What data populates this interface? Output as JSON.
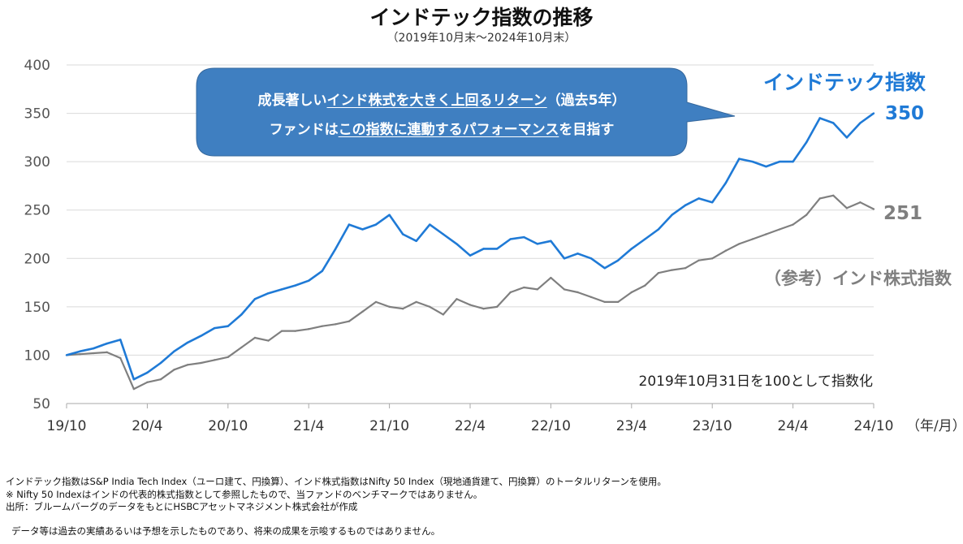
{
  "title": "インドテック指数の推移",
  "subtitle": "（2019年10月末～2024年10月末）",
  "callout": {
    "line1_a": "成長著しい",
    "line1_u": "インド株式を大きく上回るリターン",
    "line1_b": "（過去5年）",
    "line2_a": "ファンドは",
    "line2_u": "この指数に連動するパフォーマンス",
    "line2_b": "を目指す",
    "color": "#3f7fc1"
  },
  "index_note": "2019年10月31日を100として指数化",
  "x_unit_label": "（年/月）",
  "notes": [
    "インドテック指数はS&P India Tech Index（ユーロ建て、円換算）、インド株式指数はNifty 50 Index（現地通貨建て、円換算）のトータルリターンを使用。",
    "※ Nifty 50 Indexはインドの代表的株式指数として参照したもので、当ファンドのベンチマークではありません。",
    "出所：ブルームバーグのデータをもとにHSBCアセットマネジメント株式会社が作成"
  ],
  "disclaimer": "データ等は過去の実績あるいは予想を示したものであり、将来の成果を示唆するものではありません。",
  "chart_data": {
    "type": "line",
    "ylim": [
      50,
      400
    ],
    "yticks": [
      50,
      100,
      150,
      200,
      250,
      300,
      350,
      400
    ],
    "xlim": [
      "2019-10",
      "2024-10"
    ],
    "xtick_labels": [
      "19/10",
      "20/4",
      "20/10",
      "21/4",
      "21/10",
      "22/4",
      "22/10",
      "23/4",
      "23/10",
      "24/4",
      "24/10"
    ],
    "grid": "horizontal",
    "series": [
      {
        "name": "インドテック指数",
        "color": "#1f7ad6",
        "end_label": "350",
        "points": [
          [
            "2019-10",
            100
          ],
          [
            "2019-11",
            104
          ],
          [
            "2019-12",
            107
          ],
          [
            "2020-01",
            112
          ],
          [
            "2020-02",
            116
          ],
          [
            "2020-03",
            75
          ],
          [
            "2020-04",
            82
          ],
          [
            "2020-05",
            92
          ],
          [
            "2020-06",
            104
          ],
          [
            "2020-07",
            113
          ],
          [
            "2020-08",
            120
          ],
          [
            "2020-09",
            128
          ],
          [
            "2020-10",
            130
          ],
          [
            "2020-11",
            142
          ],
          [
            "2020-12",
            158
          ],
          [
            "2021-01",
            164
          ],
          [
            "2021-02",
            168
          ],
          [
            "2021-03",
            172
          ],
          [
            "2021-04",
            177
          ],
          [
            "2021-05",
            187
          ],
          [
            "2021-06",
            210
          ],
          [
            "2021-07",
            235
          ],
          [
            "2021-08",
            230
          ],
          [
            "2021-09",
            235
          ],
          [
            "2021-10",
            245
          ],
          [
            "2021-11",
            225
          ],
          [
            "2021-12",
            218
          ],
          [
            "2022-01",
            235
          ],
          [
            "2022-02",
            225
          ],
          [
            "2022-03",
            215
          ],
          [
            "2022-04",
            203
          ],
          [
            "2022-05",
            210
          ],
          [
            "2022-06",
            210
          ],
          [
            "2022-07",
            220
          ],
          [
            "2022-08",
            222
          ],
          [
            "2022-09",
            215
          ],
          [
            "2022-10",
            218
          ],
          [
            "2022-11",
            200
          ],
          [
            "2022-12",
            205
          ],
          [
            "2023-01",
            200
          ],
          [
            "2023-02",
            190
          ],
          [
            "2023-03",
            198
          ],
          [
            "2023-04",
            210
          ],
          [
            "2023-05",
            220
          ],
          [
            "2023-06",
            230
          ],
          [
            "2023-07",
            245
          ],
          [
            "2023-08",
            255
          ],
          [
            "2023-09",
            262
          ],
          [
            "2023-10",
            258
          ],
          [
            "2023-11",
            278
          ],
          [
            "2023-12",
            303
          ],
          [
            "2024-01",
            300
          ],
          [
            "2024-02",
            295
          ],
          [
            "2024-03",
            300
          ],
          [
            "2024-04",
            300
          ],
          [
            "2024-05",
            320
          ],
          [
            "2024-06",
            345
          ],
          [
            "2024-07",
            340
          ],
          [
            "2024-08",
            325
          ],
          [
            "2024-09",
            340
          ],
          [
            "2024-10",
            350
          ]
        ]
      },
      {
        "name": "（参考）インド株式指数",
        "color": "#7f7f7f",
        "end_label": "251",
        "points": [
          [
            "2019-10",
            100
          ],
          [
            "2019-11",
            101
          ],
          [
            "2019-12",
            102
          ],
          [
            "2020-01",
            103
          ],
          [
            "2020-02",
            97
          ],
          [
            "2020-03",
            65
          ],
          [
            "2020-04",
            72
          ],
          [
            "2020-05",
            75
          ],
          [
            "2020-06",
            85
          ],
          [
            "2020-07",
            90
          ],
          [
            "2020-08",
            92
          ],
          [
            "2020-09",
            95
          ],
          [
            "2020-10",
            98
          ],
          [
            "2020-11",
            108
          ],
          [
            "2020-12",
            118
          ],
          [
            "2021-01",
            115
          ],
          [
            "2021-02",
            125
          ],
          [
            "2021-03",
            125
          ],
          [
            "2021-04",
            127
          ],
          [
            "2021-05",
            130
          ],
          [
            "2021-06",
            132
          ],
          [
            "2021-07",
            135
          ],
          [
            "2021-08",
            145
          ],
          [
            "2021-09",
            155
          ],
          [
            "2021-10",
            150
          ],
          [
            "2021-11",
            148
          ],
          [
            "2021-12",
            155
          ],
          [
            "2022-01",
            150
          ],
          [
            "2022-02",
            142
          ],
          [
            "2022-03",
            158
          ],
          [
            "2022-04",
            152
          ],
          [
            "2022-05",
            148
          ],
          [
            "2022-06",
            150
          ],
          [
            "2022-07",
            165
          ],
          [
            "2022-08",
            170
          ],
          [
            "2022-09",
            168
          ],
          [
            "2022-10",
            180
          ],
          [
            "2022-11",
            168
          ],
          [
            "2022-12",
            165
          ],
          [
            "2023-01",
            160
          ],
          [
            "2023-02",
            155
          ],
          [
            "2023-03",
            155
          ],
          [
            "2023-04",
            165
          ],
          [
            "2023-05",
            172
          ],
          [
            "2023-06",
            185
          ],
          [
            "2023-07",
            188
          ],
          [
            "2023-08",
            190
          ],
          [
            "2023-09",
            198
          ],
          [
            "2023-10",
            200
          ],
          [
            "2023-11",
            208
          ],
          [
            "2023-12",
            215
          ],
          [
            "2024-01",
            220
          ],
          [
            "2024-02",
            225
          ],
          [
            "2024-03",
            230
          ],
          [
            "2024-04",
            235
          ],
          [
            "2024-05",
            245
          ],
          [
            "2024-06",
            262
          ],
          [
            "2024-07",
            265
          ],
          [
            "2024-08",
            252
          ],
          [
            "2024-09",
            258
          ],
          [
            "2024-10",
            251
          ]
        ]
      }
    ]
  }
}
